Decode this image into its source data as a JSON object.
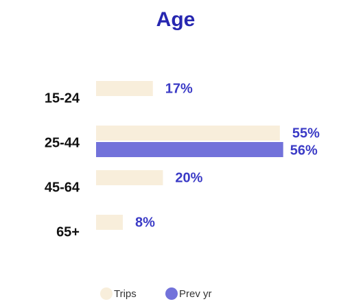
{
  "chart_data": {
    "type": "hbar",
    "title": "Age",
    "categories": [
      "15-24",
      "25-44",
      "45-64",
      "65+"
    ],
    "series": [
      {
        "name": "Trips",
        "color": "#f8eedb",
        "values": [
          17,
          55,
          20,
          8
        ],
        "value_labels": [
          "17%",
          "55%",
          "20%",
          "8%"
        ]
      },
      {
        "name": "Prev yr",
        "color": "#7272da",
        "values": [
          null,
          56,
          null,
          null
        ],
        "value_labels": [
          null,
          "56%",
          null,
          null
        ]
      }
    ],
    "legend": "bottom"
  }
}
